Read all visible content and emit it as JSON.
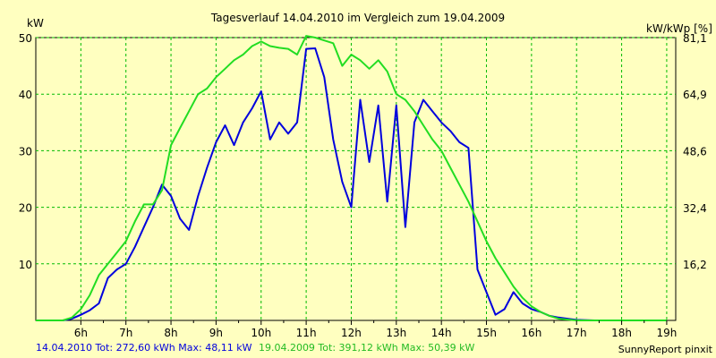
{
  "chart_data": {
    "type": "line",
    "title": "Tagesverlauf 14.04.2010 im Vergleich zum 19.04.2009",
    "ylabel": "kW",
    "y2label": "kW/kWp [%]",
    "ylim": [
      0,
      50
    ],
    "y2lim": [
      0,
      81.1
    ],
    "xlim": [
      5.0,
      19.2
    ],
    "grid": true,
    "x_ticks": [
      {
        "x": 6,
        "label": "6h"
      },
      {
        "x": 7,
        "label": "7h"
      },
      {
        "x": 8,
        "label": "8h"
      },
      {
        "x": 9,
        "label": "9h"
      },
      {
        "x": 10,
        "label": "10h"
      },
      {
        "x": 11,
        "label": "11h"
      },
      {
        "x": 12,
        "label": "12h"
      },
      {
        "x": 13,
        "label": "13h"
      },
      {
        "x": 14,
        "label": "14h"
      },
      {
        "x": 15,
        "label": "15h"
      },
      {
        "x": 16,
        "label": "16h"
      },
      {
        "x": 17,
        "label": "17h"
      },
      {
        "x": 18,
        "label": "18h"
      },
      {
        "x": 19,
        "label": "19h"
      }
    ],
    "y_ticks": [
      {
        "y": 10,
        "label": "10"
      },
      {
        "y": 20,
        "label": "20"
      },
      {
        "y": 30,
        "label": "30"
      },
      {
        "y": 40,
        "label": "40"
      },
      {
        "y": 50,
        "label": "50"
      }
    ],
    "y2_ticks": [
      {
        "y": 16.2,
        "label": "16,2"
      },
      {
        "y": 32.4,
        "label": "32,4"
      },
      {
        "y": 48.6,
        "label": "48,6"
      },
      {
        "y": 64.9,
        "label": "64,9"
      },
      {
        "y": 81.1,
        "label": "81,1"
      }
    ],
    "series": [
      {
        "name": "14.04.2010",
        "color": "#0000dd",
        "summary": "14.04.2010 Tot: 272,60 kWh Max: 48,11 kW",
        "points": [
          [
            5.0,
            0
          ],
          [
            5.6,
            0
          ],
          [
            5.8,
            0.3
          ],
          [
            6.0,
            1.0
          ],
          [
            6.2,
            1.8
          ],
          [
            6.4,
            3.0
          ],
          [
            6.6,
            7.5
          ],
          [
            6.8,
            9.0
          ],
          [
            7.0,
            10.0
          ],
          [
            7.2,
            13.0
          ],
          [
            7.4,
            16.5
          ],
          [
            7.6,
            20.0
          ],
          [
            7.8,
            24.0
          ],
          [
            8.0,
            22.0
          ],
          [
            8.2,
            18.0
          ],
          [
            8.4,
            16.0
          ],
          [
            8.6,
            22.0
          ],
          [
            8.8,
            27.0
          ],
          [
            9.0,
            31.5
          ],
          [
            9.2,
            34.5
          ],
          [
            9.4,
            31.0
          ],
          [
            9.6,
            35.0
          ],
          [
            9.8,
            37.5
          ],
          [
            10.0,
            40.5
          ],
          [
            10.2,
            32.0
          ],
          [
            10.4,
            35.0
          ],
          [
            10.6,
            33.0
          ],
          [
            10.8,
            35.0
          ],
          [
            11.0,
            48.0
          ],
          [
            11.2,
            48.1
          ],
          [
            11.4,
            43.0
          ],
          [
            11.6,
            32.0
          ],
          [
            11.8,
            24.5
          ],
          [
            12.0,
            20.0
          ],
          [
            12.2,
            39.0
          ],
          [
            12.4,
            28.0
          ],
          [
            12.6,
            38.0
          ],
          [
            12.8,
            21.0
          ],
          [
            13.0,
            38.0
          ],
          [
            13.2,
            16.5
          ],
          [
            13.4,
            35.0
          ],
          [
            13.6,
            39.0
          ],
          [
            13.8,
            37.0
          ],
          [
            14.0,
            35.0
          ],
          [
            14.2,
            33.5
          ],
          [
            14.4,
            31.5
          ],
          [
            14.6,
            30.5
          ],
          [
            14.8,
            9.0
          ],
          [
            15.0,
            5.0
          ],
          [
            15.2,
            1.0
          ],
          [
            15.4,
            2.0
          ],
          [
            15.6,
            5.0
          ],
          [
            15.8,
            3.0
          ],
          [
            16.0,
            2.0
          ],
          [
            16.2,
            1.5
          ],
          [
            16.4,
            0.8
          ],
          [
            16.6,
            0.5
          ],
          [
            16.8,
            0.3
          ],
          [
            17.0,
            0.1
          ],
          [
            17.4,
            0
          ],
          [
            18.6,
            0
          ],
          [
            19.0,
            0
          ]
        ]
      },
      {
        "name": "19.04.2009",
        "color": "#22dd22",
        "summary": "19.04.2009 Tot: 391,12 kWh Max: 50,39 kW",
        "points": [
          [
            5.0,
            0
          ],
          [
            5.6,
            0
          ],
          [
            5.8,
            0.5
          ],
          [
            6.0,
            2.0
          ],
          [
            6.2,
            4.5
          ],
          [
            6.4,
            8.0
          ],
          [
            6.6,
            10.0
          ],
          [
            6.8,
            12.0
          ],
          [
            7.0,
            14.0
          ],
          [
            7.2,
            17.5
          ],
          [
            7.4,
            20.5
          ],
          [
            7.6,
            20.5
          ],
          [
            7.8,
            23.0
          ],
          [
            8.0,
            31.0
          ],
          [
            8.2,
            34.0
          ],
          [
            8.4,
            37.0
          ],
          [
            8.6,
            40.0
          ],
          [
            8.8,
            41.0
          ],
          [
            9.0,
            43.0
          ],
          [
            9.2,
            44.5
          ],
          [
            9.4,
            46.0
          ],
          [
            9.6,
            47.0
          ],
          [
            9.8,
            48.5
          ],
          [
            10.0,
            49.3
          ],
          [
            10.2,
            48.5
          ],
          [
            10.4,
            48.2
          ],
          [
            10.6,
            48.0
          ],
          [
            10.8,
            47.0
          ],
          [
            11.0,
            50.3
          ],
          [
            11.2,
            50.0
          ],
          [
            11.4,
            49.5
          ],
          [
            11.6,
            49.0
          ],
          [
            11.8,
            45.0
          ],
          [
            12.0,
            47.0
          ],
          [
            12.2,
            46.0
          ],
          [
            12.4,
            44.5
          ],
          [
            12.6,
            46.0
          ],
          [
            12.8,
            44.0
          ],
          [
            13.0,
            40.0
          ],
          [
            13.2,
            39.0
          ],
          [
            13.4,
            37.0
          ],
          [
            13.6,
            34.5
          ],
          [
            13.8,
            32.0
          ],
          [
            14.0,
            30.0
          ],
          [
            14.2,
            27.0
          ],
          [
            14.4,
            24.0
          ],
          [
            14.6,
            21.0
          ],
          [
            14.8,
            17.5
          ],
          [
            15.0,
            14.0
          ],
          [
            15.2,
            11.0
          ],
          [
            15.4,
            8.5
          ],
          [
            15.6,
            6.0
          ],
          [
            15.8,
            4.0
          ],
          [
            16.0,
            2.5
          ],
          [
            16.2,
            1.5
          ],
          [
            16.4,
            0.8
          ],
          [
            16.6,
            0.3
          ],
          [
            17.0,
            0
          ],
          [
            19.0,
            0
          ]
        ]
      }
    ]
  },
  "footer": {
    "left_summary_1": "14.04.2010 Tot: 272,60 kWh Max: 48,11 kW",
    "left_summary_2": "19.04.2009 Tot: 391,12 kWh Max: 50,39 kW",
    "credit": "SunnyReport pinxit"
  },
  "colors": {
    "background": "#ffffc0",
    "grid": "#00bb00",
    "axis": "#000000",
    "series1": "#0000dd",
    "series2": "#22dd22"
  }
}
